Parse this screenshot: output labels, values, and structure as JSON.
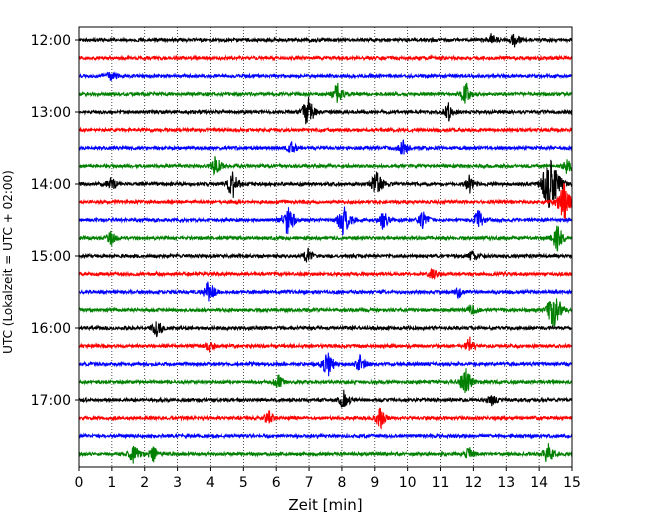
{
  "chart_data": {
    "type": "line",
    "title": "",
    "xlabel": "Zeit  [min]",
    "ylabel": "UTC (Lokalzeit = UTC + 02:00)",
    "xlim": [
      0,
      15
    ],
    "x_ticks": [
      "0",
      "1",
      "2",
      "3",
      "4",
      "5",
      "6",
      "7",
      "8",
      "9",
      "10",
      "11",
      "12",
      "13",
      "14",
      "15"
    ],
    "y_ticks": [
      "12:00",
      "13:00",
      "14:00",
      "15:00",
      "16:00",
      "17:00"
    ],
    "grid": "vertical dotted",
    "trace_interval_minutes": 15,
    "series": [
      {
        "start": "12:00",
        "color": "#000000",
        "events": [
          [
            12.6,
            0.4
          ],
          [
            13.3,
            0.45
          ]
        ]
      },
      {
        "start": "12:15",
        "color": "#ff0000",
        "events": []
      },
      {
        "start": "12:30",
        "color": "#0000ff",
        "events": [
          [
            1.0,
            0.35
          ]
        ]
      },
      {
        "start": "12:45",
        "color": "#008000",
        "events": [
          [
            7.9,
            0.7
          ],
          [
            11.8,
            0.6
          ]
        ]
      },
      {
        "start": "13:00",
        "color": "#000000",
        "events": [
          [
            7.0,
            0.9
          ],
          [
            11.3,
            0.6
          ]
        ]
      },
      {
        "start": "13:15",
        "color": "#ff0000",
        "events": []
      },
      {
        "start": "13:30",
        "color": "#0000ff",
        "events": [
          [
            6.5,
            0.35
          ],
          [
            9.9,
            0.5
          ]
        ]
      },
      {
        "start": "13:45",
        "color": "#008000",
        "events": [
          [
            4.2,
            0.6
          ],
          [
            14.9,
            0.5
          ]
        ]
      },
      {
        "start": "14:00",
        "color": "#000000",
        "events": [
          [
            1.0,
            0.5
          ],
          [
            4.7,
            0.8
          ],
          [
            9.1,
            0.75
          ],
          [
            11.9,
            0.5
          ],
          [
            14.4,
            1.8
          ]
        ]
      },
      {
        "start": "14:15",
        "color": "#ff0000",
        "events": [
          [
            14.8,
            1.2
          ]
        ]
      },
      {
        "start": "14:30",
        "color": "#0000ff",
        "events": [
          [
            6.4,
            1.0
          ],
          [
            8.1,
            1.0
          ],
          [
            9.3,
            0.6
          ],
          [
            10.5,
            0.5
          ],
          [
            12.2,
            0.6
          ]
        ]
      },
      {
        "start": "14:45",
        "color": "#008000",
        "events": [
          [
            1.0,
            0.4
          ],
          [
            14.6,
            0.8
          ]
        ]
      },
      {
        "start": "15:00",
        "color": "#000000",
        "events": [
          [
            7.0,
            0.5
          ],
          [
            12.0,
            0.3
          ]
        ]
      },
      {
        "start": "15:15",
        "color": "#ff0000",
        "events": [
          [
            10.8,
            0.35
          ]
        ]
      },
      {
        "start": "15:30",
        "color": "#0000ff",
        "events": [
          [
            4.0,
            0.7
          ],
          [
            11.6,
            0.35
          ]
        ]
      },
      {
        "start": "15:45",
        "color": "#008000",
        "events": [
          [
            12.0,
            0.4
          ],
          [
            14.5,
            1.2
          ]
        ]
      },
      {
        "start": "16:00",
        "color": "#000000",
        "events": [
          [
            2.4,
            0.5
          ]
        ]
      },
      {
        "start": "16:15",
        "color": "#ff0000",
        "events": [
          [
            4.0,
            0.35
          ],
          [
            11.9,
            0.5
          ]
        ]
      },
      {
        "start": "16:30",
        "color": "#0000ff",
        "events": [
          [
            7.6,
            0.8
          ],
          [
            8.6,
            0.55
          ]
        ]
      },
      {
        "start": "16:45",
        "color": "#008000",
        "events": [
          [
            6.1,
            0.4
          ],
          [
            11.8,
            0.85
          ]
        ]
      },
      {
        "start": "17:00",
        "color": "#000000",
        "events": [
          [
            8.1,
            0.6
          ],
          [
            12.6,
            0.4
          ]
        ]
      },
      {
        "start": "17:15",
        "color": "#ff0000",
        "events": [
          [
            5.8,
            0.4
          ],
          [
            9.2,
            0.6
          ]
        ]
      },
      {
        "start": "17:30",
        "color": "#0000ff",
        "events": []
      },
      {
        "start": "17:45",
        "color": "#008000",
        "events": [
          [
            1.7,
            0.6
          ],
          [
            2.3,
            0.5
          ],
          [
            11.9,
            0.35
          ],
          [
            14.3,
            0.6
          ]
        ]
      }
    ]
  }
}
